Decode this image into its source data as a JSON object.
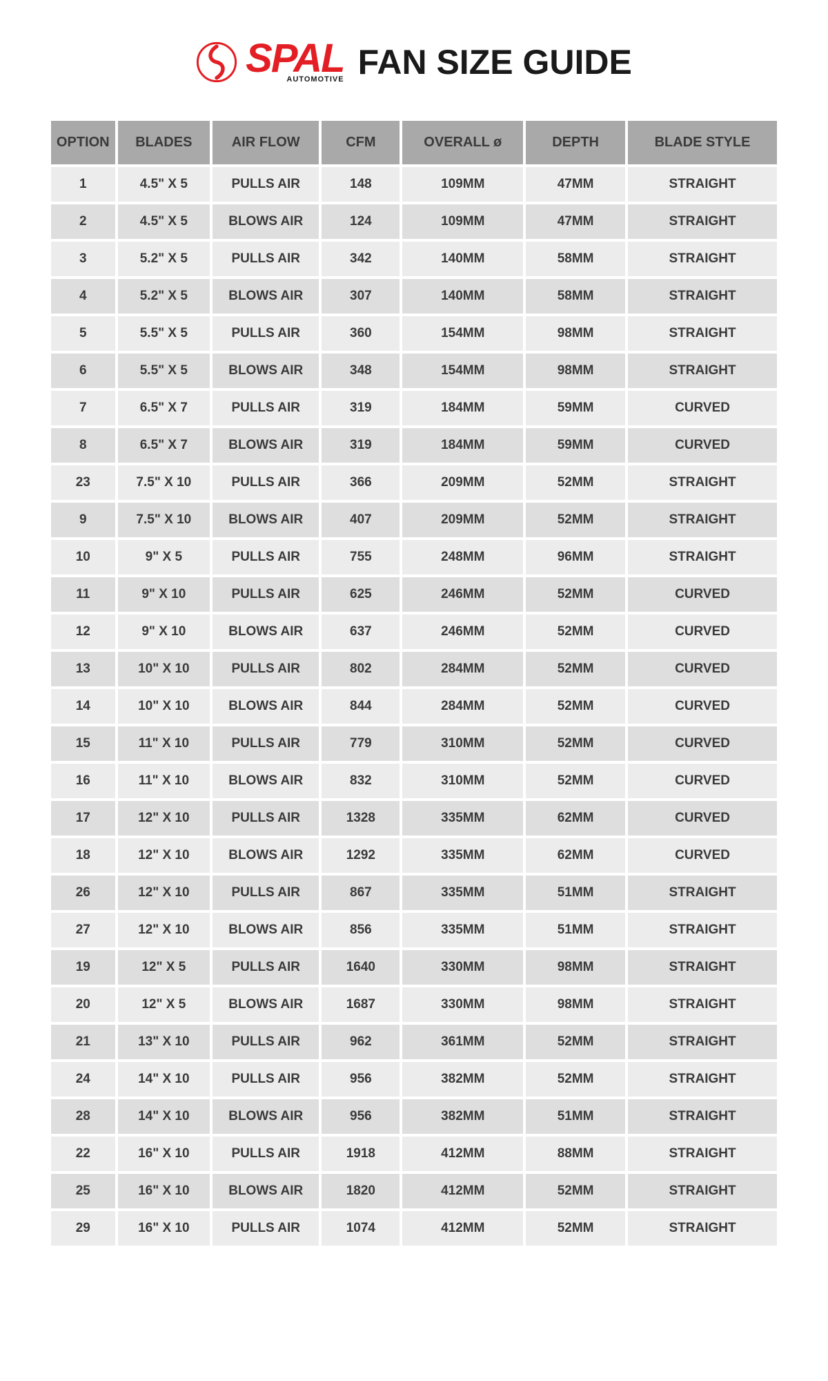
{
  "brand": {
    "name": "SPAL",
    "subtitle": "AUTOMOTIVE",
    "logo_color": "#e31e24",
    "text_color": "#1a1a1a"
  },
  "title": "FAN SIZE GUIDE",
  "table": {
    "header_bg": "#a9a9a9",
    "row_odd_bg": "#ececec",
    "row_even_bg": "#dedede",
    "text_color": "#3a3a3a",
    "columns": [
      "OPTION",
      "BLADES",
      "AIR FLOW",
      "CFM",
      "OVERALL ø",
      "DEPTH",
      "BLADE STYLE"
    ],
    "rows": [
      [
        "1",
        "4.5\" X 5",
        "PULLS AIR",
        "148",
        "109MM",
        "47MM",
        "STRAIGHT"
      ],
      [
        "2",
        "4.5\" X 5",
        "BLOWS AIR",
        "124",
        "109MM",
        "47MM",
        "STRAIGHT"
      ],
      [
        "3",
        "5.2\" X 5",
        "PULLS AIR",
        "342",
        "140MM",
        "58MM",
        "STRAIGHT"
      ],
      [
        "4",
        "5.2\" X 5",
        "BLOWS AIR",
        "307",
        "140MM",
        "58MM",
        "STRAIGHT"
      ],
      [
        "5",
        "5.5\" X 5",
        "PULLS AIR",
        "360",
        "154MM",
        "98MM",
        "STRAIGHT"
      ],
      [
        "6",
        "5.5\" X 5",
        "BLOWS AIR",
        "348",
        "154MM",
        "98MM",
        "STRAIGHT"
      ],
      [
        "7",
        "6.5\" X 7",
        "PULLS AIR",
        "319",
        "184MM",
        "59MM",
        "CURVED"
      ],
      [
        "8",
        "6.5\" X 7",
        "BLOWS AIR",
        "319",
        "184MM",
        "59MM",
        "CURVED"
      ],
      [
        "23",
        "7.5\" X 10",
        "PULLS AIR",
        "366",
        "209MM",
        "52MM",
        "STRAIGHT"
      ],
      [
        "9",
        "7.5\" X 10",
        "BLOWS AIR",
        "407",
        "209MM",
        "52MM",
        "STRAIGHT"
      ],
      [
        "10",
        "9\" X 5",
        "PULLS AIR",
        "755",
        "248MM",
        "96MM",
        "STRAIGHT"
      ],
      [
        "11",
        "9\" X 10",
        "PULLS AIR",
        "625",
        "246MM",
        "52MM",
        "CURVED"
      ],
      [
        "12",
        "9\" X 10",
        "BLOWS AIR",
        "637",
        "246MM",
        "52MM",
        "CURVED"
      ],
      [
        "13",
        "10\" X 10",
        "PULLS AIR",
        "802",
        "284MM",
        "52MM",
        "CURVED"
      ],
      [
        "14",
        "10\" X 10",
        "BLOWS AIR",
        "844",
        "284MM",
        "52MM",
        "CURVED"
      ],
      [
        "15",
        "11\" X 10",
        "PULLS AIR",
        "779",
        "310MM",
        "52MM",
        "CURVED"
      ],
      [
        "16",
        "11\" X 10",
        "BLOWS AIR",
        "832",
        "310MM",
        "52MM",
        "CURVED"
      ],
      [
        "17",
        "12\" X 10",
        "PULLS AIR",
        "1328",
        "335MM",
        "62MM",
        "CURVED"
      ],
      [
        "18",
        "12\" X 10",
        "BLOWS AIR",
        "1292",
        "335MM",
        "62MM",
        "CURVED"
      ],
      [
        "26",
        "12\" X 10",
        "PULLS AIR",
        "867",
        "335MM",
        "51MM",
        "STRAIGHT"
      ],
      [
        "27",
        "12\" X 10",
        "BLOWS AIR",
        "856",
        "335MM",
        "51MM",
        "STRAIGHT"
      ],
      [
        "19",
        "12\" X 5",
        "PULLS AIR",
        "1640",
        "330MM",
        "98MM",
        "STRAIGHT"
      ],
      [
        "20",
        "12\" X 5",
        "BLOWS AIR",
        "1687",
        "330MM",
        "98MM",
        "STRAIGHT"
      ],
      [
        "21",
        "13\" X 10",
        "PULLS AIR",
        "962",
        "361MM",
        "52MM",
        "STRAIGHT"
      ],
      [
        "24",
        "14\" X 10",
        "PULLS AIR",
        "956",
        "382MM",
        "52MM",
        "STRAIGHT"
      ],
      [
        "28",
        "14\" X 10",
        "BLOWS AIR",
        "956",
        "382MM",
        "51MM",
        "STRAIGHT"
      ],
      [
        "22",
        "16\" X 10",
        "PULLS AIR",
        "1918",
        "412MM",
        "88MM",
        "STRAIGHT"
      ],
      [
        "25",
        "16\" X 10",
        "BLOWS AIR",
        "1820",
        "412MM",
        "52MM",
        "STRAIGHT"
      ],
      [
        "29",
        "16\" X 10",
        "PULLS AIR",
        "1074",
        "412MM",
        "52MM",
        "STRAIGHT"
      ]
    ]
  }
}
